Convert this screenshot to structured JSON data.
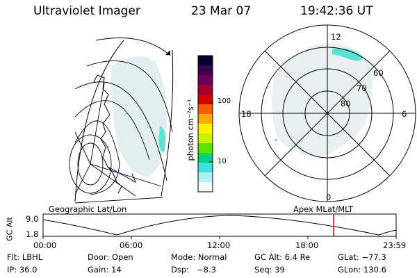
{
  "header": {
    "instrument": "Ultraviolet Imager",
    "date": "23 Mar 07",
    "time": "19:42:36 UT"
  },
  "colorbar": {
    "unit_label": "photon cm⁻²s⁻¹",
    "ticks": [
      "100",
      "10"
    ],
    "colors": [
      "#000030",
      "#3a0050",
      "#6a005a",
      "#a00030",
      "#d40000",
      "#f06000",
      "#f8a800",
      "#f8f000",
      "#c8f000",
      "#60e000",
      "#00d080",
      "#40e0e0",
      "#b0f0f0",
      "#f0f8f8"
    ]
  },
  "polar_plot": {
    "mlt_labels": {
      "top": "12",
      "left": "18",
      "right": "6",
      "bottom": "0"
    },
    "lat_labels": [
      "60",
      "70",
      "80"
    ]
  },
  "altitude_panel": {
    "left_label": "Geographic Lat/Lon",
    "right_label": "Apex MLat/MLT",
    "axis_label": "GC Alt",
    "y_ticks": [
      "9.0",
      "1.8"
    ],
    "x_ticks": [
      "00:00",
      "06:00",
      "12:00",
      "18:00",
      "23:59"
    ],
    "marker_color": "#e00000"
  },
  "info": {
    "row1": [
      {
        "key": "filter",
        "text": "Flt: LBHL"
      },
      {
        "key": "door",
        "text": "Door: Open"
      },
      {
        "key": "mode",
        "text": "Mode: Normal"
      },
      {
        "key": "gc_alt",
        "text": "GC Alt: 6.4 Re"
      },
      {
        "key": "glat",
        "text": "GLat: −77.3"
      }
    ],
    "row2": [
      {
        "key": "ip",
        "text": "IP: 36.0"
      },
      {
        "key": "gain",
        "text": "Gain: 14"
      },
      {
        "key": "dsp",
        "text": "Dsp:   −8.3"
      },
      {
        "key": "seq",
        "text": "Seq: 39"
      },
      {
        "key": "glon",
        "text": "GLon: 130.6"
      }
    ]
  }
}
